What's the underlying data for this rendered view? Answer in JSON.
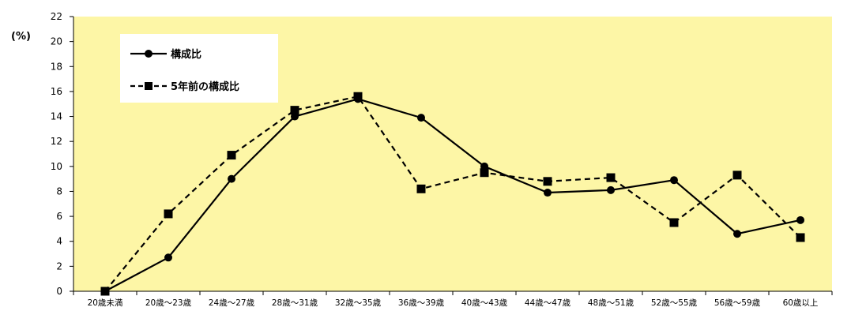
{
  "chart_data": {
    "type": "line",
    "unit_label": "(%)",
    "categories": [
      "20歳未満",
      "20歳～23歳",
      "24歳～27歳",
      "28歳～31歳",
      "32歳～35歳",
      "36歳～39歳",
      "40歳～43歳",
      "44歳～47歳",
      "48歳～51歳",
      "52歳～55歳",
      "56歳～59歳",
      "60歳以上"
    ],
    "series": [
      {
        "name": "構成比",
        "marker": "circle",
        "line_style": "solid",
        "values": [
          0,
          2.7,
          9.0,
          14.0,
          15.4,
          13.9,
          10.0,
          7.9,
          8.1,
          8.9,
          4.6,
          5.7
        ]
      },
      {
        "name": "5年前の構成比",
        "marker": "square",
        "line_style": "dashed",
        "values": [
          0,
          6.2,
          10.9,
          14.5,
          15.6,
          8.2,
          9.5,
          8.8,
          9.1,
          5.5,
          9.3,
          4.3
        ]
      }
    ],
    "ylim": [
      0,
      22
    ],
    "yticks": [
      0,
      2,
      4,
      6,
      8,
      10,
      12,
      14,
      16,
      18,
      20,
      22
    ],
    "grid": false,
    "legend_position": "top-left",
    "plot_background": "#fdf6a6",
    "line_color": "#000000"
  }
}
